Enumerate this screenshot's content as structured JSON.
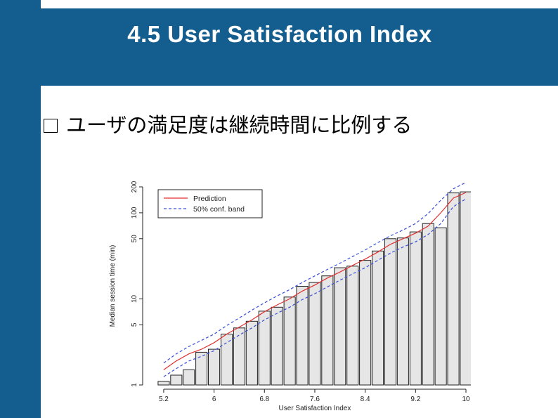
{
  "slide": {
    "title": "4.5 User Satisfaction Index",
    "bullet": "ユーザの満足度は継続時間に比例する",
    "colors": {
      "header": "#135e8e",
      "title_text": "#ffffff"
    }
  },
  "chart_data": {
    "type": "bar",
    "xlabel": "User Satisfaction Index",
    "ylabel": "Median session time (min)",
    "y_scale": "log",
    "ylim": [
      1,
      200
    ],
    "yticks": [
      1,
      5,
      10,
      50,
      100,
      200
    ],
    "xticks": [
      5.2,
      6,
      6.8,
      7.6,
      8.4,
      9.2,
      10
    ],
    "xlim": [
      5.0,
      10.0
    ],
    "bar_width": 0.18,
    "x": [
      5.2,
      5.4,
      5.6,
      5.8,
      6.0,
      6.2,
      6.4,
      6.6,
      6.8,
      7.0,
      7.2,
      7.4,
      7.6,
      7.8,
      8.0,
      8.2,
      8.4,
      8.6,
      8.8,
      9.0,
      9.2,
      9.4,
      9.6,
      9.8,
      10.0
    ],
    "values": [
      1.1,
      1.3,
      1.5,
      2.4,
      2.6,
      3.9,
      4.6,
      5.5,
      7.2,
      8.0,
      10.5,
      14.0,
      15.5,
      18.5,
      23.0,
      24.0,
      28.0,
      36.0,
      50.0,
      51.0,
      60.0,
      75.0,
      67.0,
      170.0,
      175.0
    ],
    "series": [
      {
        "name": "Prediction",
        "color": "#e03030",
        "dash": "solid",
        "x": [
          5.2,
          5.4,
          5.6,
          5.8,
          6.0,
          6.2,
          6.4,
          6.6,
          6.8,
          7.0,
          7.2,
          7.4,
          7.6,
          7.8,
          8.0,
          8.2,
          8.4,
          8.6,
          8.8,
          9.0,
          9.2,
          9.4,
          9.6,
          9.8,
          10.0
        ],
        "values": [
          1.5,
          1.9,
          2.3,
          2.6,
          3.1,
          3.9,
          4.7,
          5.7,
          7.1,
          8.5,
          10.0,
          12.3,
          14.5,
          17.5,
          20.5,
          24.5,
          29.0,
          35.0,
          43.0,
          50.0,
          58.0,
          70.0,
          100.0,
          148.0,
          172.0
        ]
      },
      {
        "name": "50% conf. band",
        "color": "#3a4fd8",
        "dash": "dashed",
        "x": [
          5.2,
          5.4,
          5.6,
          5.8,
          6.0,
          6.2,
          6.4,
          6.6,
          6.8,
          7.0,
          7.2,
          7.4,
          7.6,
          7.8,
          8.0,
          8.2,
          8.4,
          8.6,
          8.8,
          9.0,
          9.2,
          9.4,
          9.6,
          9.8,
          10.0
        ],
        "values": [
          1.8,
          2.3,
          2.8,
          3.3,
          3.9,
          4.9,
          6.0,
          7.4,
          9.0,
          10.8,
          12.8,
          15.5,
          18.5,
          22.0,
          26.0,
          31.0,
          37.0,
          45.0,
          54.0,
          63.0,
          75.0,
          98.0,
          140.0,
          190.0,
          225.0
        ]
      },
      {
        "name": "",
        "color": "#3a4fd8",
        "dash": "dashed",
        "x": [
          5.2,
          5.4,
          5.6,
          5.8,
          6.0,
          6.2,
          6.4,
          6.6,
          6.8,
          7.0,
          7.2,
          7.4,
          7.6,
          7.8,
          8.0,
          8.2,
          8.4,
          8.6,
          8.8,
          9.0,
          9.2,
          9.4,
          9.6,
          9.8,
          10.0
        ],
        "values": [
          1.25,
          1.55,
          1.9,
          2.15,
          2.5,
          3.1,
          3.8,
          4.6,
          5.7,
          6.8,
          8.0,
          9.8,
          11.5,
          13.8,
          16.5,
          19.5,
          23.0,
          28.0,
          34.0,
          40.0,
          46.0,
          56.0,
          75.0,
          118.0,
          145.0
        ]
      }
    ],
    "legend": {
      "placement": "top-left",
      "entries": [
        {
          "label": "Prediction",
          "color": "#e03030",
          "dash": "solid"
        },
        {
          "label": "50% conf. band",
          "color": "#3a4fd8",
          "dash": "dashed"
        }
      ]
    }
  }
}
